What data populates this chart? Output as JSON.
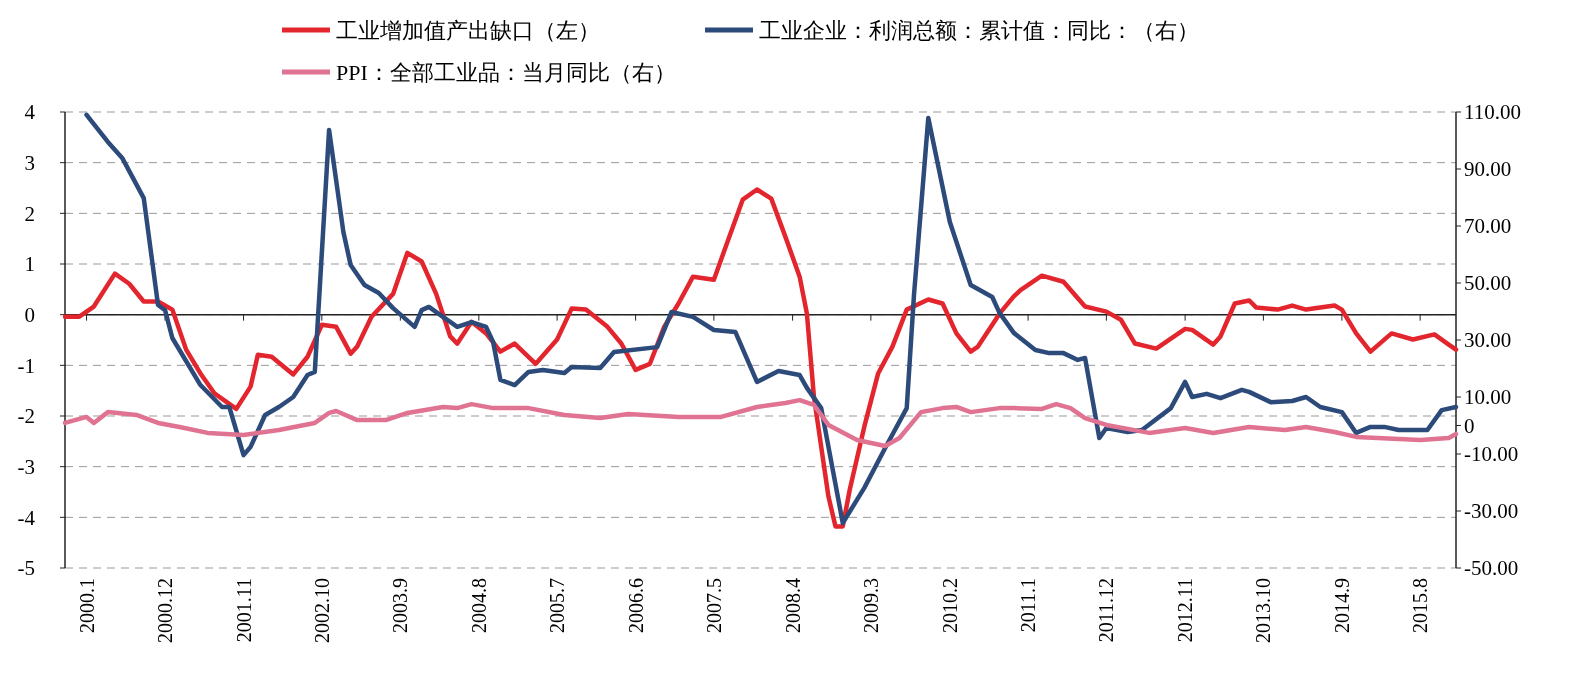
{
  "chart_data": {
    "type": "line",
    "legend": "top",
    "grid": "y",
    "line_style": "solid",
    "marker": "none",
    "xlim": [
      "1999-10",
      "2016-01"
    ],
    "xticks": [
      {
        "value": "2000-01",
        "label": "2000.1"
      },
      {
        "value": "2000-12",
        "label": "2000.12"
      },
      {
        "value": "2001-11",
        "label": "2001.11"
      },
      {
        "value": "2002-10",
        "label": "2002.10"
      },
      {
        "value": "2003-09",
        "label": "2003.9"
      },
      {
        "value": "2004-08",
        "label": "2004.8"
      },
      {
        "value": "2005-07",
        "label": "2005.7"
      },
      {
        "value": "2006-06",
        "label": "2006.6"
      },
      {
        "value": "2007-05",
        "label": "2007.5"
      },
      {
        "value": "2008-04",
        "label": "2008.4"
      },
      {
        "value": "2009-03",
        "label": "2009.3"
      },
      {
        "value": "2010-02",
        "label": "2010.2"
      },
      {
        "value": "2011-01",
        "label": "2011.1"
      },
      {
        "value": "2011-12",
        "label": "2011.12"
      },
      {
        "value": "2012-11",
        "label": "2012.11"
      },
      {
        "value": "2013-10",
        "label": "2013.10"
      },
      {
        "value": "2014-09",
        "label": "2014.9"
      },
      {
        "value": "2015-08",
        "label": "2015.8"
      }
    ],
    "ylim": [
      -5,
      4
    ],
    "yticks": [
      -5,
      -4,
      -3,
      -2,
      -1,
      0,
      1,
      2,
      3,
      4
    ],
    "y2lim": [
      -50,
      110
    ],
    "y2ticks": [
      {
        "value": 110,
        "label": "110.00"
      },
      {
        "value": 90,
        "label": "90.00"
      },
      {
        "value": 70,
        "label": "70.00"
      },
      {
        "value": 50,
        "label": "50.00"
      },
      {
        "value": 30,
        "label": "30.00"
      },
      {
        "value": 10,
        "label": "10.00"
      },
      0,
      {
        "value": -10,
        "label": "-10.00"
      },
      {
        "value": -30,
        "label": "-30.00"
      },
      {
        "value": -50,
        "label": "-50.00"
      }
    ],
    "series": [
      {
        "name": "工业增加值产出缺口（左）",
        "color": "#e3262e",
        "x": [
          "1999-10",
          "1999-12",
          "2000-02",
          "2000-05",
          "2000-07",
          "2000-09",
          "2000-11",
          "2001-01",
          "2001-03",
          "2001-05",
          "2001-07",
          "2001-10",
          "2001-12",
          "2002-01",
          "2002-03",
          "2002-06",
          "2002-08",
          "2002-10",
          "2002-12",
          "2003-02",
          "2003-03",
          "2003-05",
          "2003-08",
          "2003-10",
          "2003-12",
          "2004-02",
          "2004-04",
          "2004-05",
          "2004-07",
          "2004-09",
          "2004-11",
          "2005-01",
          "2005-04",
          "2005-07",
          "2005-09",
          "2005-11",
          "2006-02",
          "2006-04",
          "2006-06",
          "2006-08",
          "2006-10",
          "2006-12",
          "2007-02",
          "2007-05",
          "2007-06",
          "2007-09",
          "2007-11",
          "2008-01",
          "2008-03",
          "2008-05",
          "2008-06",
          "2008-07",
          "2008-09",
          "2008-10",
          "2008-11",
          "2008-12",
          "2009-02",
          "2009-04",
          "2009-06",
          "2009-08",
          "2009-11",
          "2010-01",
          "2010-03",
          "2010-05",
          "2010-06",
          "2010-09",
          "2010-11",
          "2010-12",
          "2011-03",
          "2011-06",
          "2011-09",
          "2011-12",
          "2012-02",
          "2012-04",
          "2012-07",
          "2012-11",
          "2012-12",
          "2013-03",
          "2013-04",
          "2013-06",
          "2013-08",
          "2013-09",
          "2013-12",
          "2014-02",
          "2014-04",
          "2014-08",
          "2014-09",
          "2014-11",
          "2015-01",
          "2015-04",
          "2015-07",
          "2015-10",
          "2015-12",
          "2016-01"
        ],
        "values": [
          -0.04,
          -0.04,
          0.16,
          0.81,
          0.61,
          0.26,
          0.26,
          0.1,
          -0.69,
          -1.16,
          -1.56,
          -1.86,
          -1.42,
          -0.79,
          -0.83,
          -1.18,
          -0.83,
          -0.2,
          -0.24,
          -0.77,
          -0.63,
          -0.04,
          0.41,
          1.22,
          1.05,
          0.41,
          -0.43,
          -0.57,
          -0.14,
          -0.37,
          -0.73,
          -0.57,
          -0.97,
          -0.49,
          0.12,
          0.1,
          -0.24,
          -0.57,
          -1.09,
          -0.97,
          -0.24,
          0.22,
          0.75,
          0.69,
          1.09,
          2.27,
          2.47,
          2.29,
          1.54,
          0.75,
          0.02,
          -1.62,
          -3.59,
          -4.18,
          -4.18,
          -3.45,
          -2.21,
          -1.16,
          -0.63,
          0.1,
          0.3,
          0.22,
          -0.37,
          -0.73,
          -0.63,
          0.02,
          0.36,
          0.49,
          0.77,
          0.65,
          0.16,
          0.06,
          -0.1,
          -0.57,
          -0.67,
          -0.28,
          -0.3,
          -0.59,
          -0.43,
          0.22,
          0.28,
          0.14,
          0.1,
          0.18,
          0.1,
          0.18,
          0.1,
          -0.37,
          -0.73,
          -0.37,
          -0.49,
          -0.39,
          -0.59,
          -0.69
        ]
      },
      {
        "name": "工业企业：利润总额：累计值：同比：（右）",
        "color": "#2c4a7a",
        "axis": "y2",
        "x": [
          "2000-01",
          "2000-04",
          "2000-06",
          "2000-09",
          "2000-11",
          "2000-12",
          "2001-01",
          "2001-05",
          "2001-08",
          "2001-09",
          "2001-11",
          "2001-12",
          "2002-02",
          "2002-04",
          "2002-06",
          "2002-08",
          "2002-09",
          "2002-11",
          "2003-01",
          "2003-02",
          "2003-04",
          "2003-06",
          "2003-08",
          "2003-11",
          "2003-12",
          "2004-01",
          "2004-03",
          "2004-05",
          "2004-07",
          "2004-09",
          "2004-10",
          "2004-11",
          "2005-01",
          "2005-03",
          "2005-05",
          "2005-08",
          "2005-09",
          "2006-01",
          "2006-03",
          "2006-09",
          "2006-11",
          "2007-02",
          "2007-05",
          "2007-08",
          "2007-11",
          "2008-02",
          "2008-05",
          "2008-06",
          "2008-08",
          "2008-11",
          "2009-02",
          "2009-05",
          "2009-08",
          "2009-09",
          "2009-11",
          "2010-02",
          "2010-05",
          "2010-08",
          "2010-09",
          "2010-11",
          "2011-02",
          "2011-04",
          "2011-06",
          "2011-08",
          "2011-09",
          "2011-11",
          "2011-12",
          "2012-03",
          "2012-05",
          "2012-09",
          "2012-11",
          "2012-12",
          "2013-02",
          "2013-04",
          "2013-07",
          "2013-08",
          "2013-11",
          "2014-02",
          "2014-04",
          "2014-06",
          "2014-09",
          "2014-11",
          "2015-01",
          "2015-03",
          "2015-05",
          "2015-09",
          "2015-11",
          "2016-01"
        ],
        "values": [
          109,
          99.5,
          93.9,
          79.8,
          42.3,
          40.5,
          30.7,
          14.2,
          6.5,
          6.5,
          -10.4,
          -7.5,
          3.7,
          6.5,
          10,
          17.7,
          18.8,
          103.7,
          67.9,
          56.3,
          49.3,
          46.5,
          41.2,
          34.6,
          40.5,
          41.6,
          38.1,
          34.6,
          36.3,
          34.6,
          29.3,
          16,
          14.2,
          18.8,
          19.5,
          18.4,
          20.5,
          20.2,
          25.8,
          27.5,
          39.8,
          38.1,
          33.5,
          32.8,
          15.3,
          19.1,
          17.7,
          13.2,
          6.1,
          -34.2,
          -21.9,
          -7.9,
          6.1,
          45.8,
          107.9,
          71.4,
          49.3,
          45.1,
          39.5,
          32.5,
          26.5,
          25.4,
          25.4,
          23,
          23.7,
          -4.4,
          -0.9,
          -2.3,
          -1.6,
          6.1,
          15.3,
          10,
          11.1,
          9.6,
          12.5,
          11.8,
          8.2,
          8.6,
          10,
          6.5,
          4.7,
          -2.6,
          -0.5,
          -0.5,
          -1.6,
          -1.6,
          5.4,
          6.5
        ]
      },
      {
        "name": "PPI：全部工业品：当月同比（右）",
        "color": "#e07391",
        "axis": "y2",
        "x": [
          "1999-10",
          "2000-01",
          "2000-02",
          "2000-04",
          "2000-08",
          "2000-11",
          "2001-02",
          "2001-06",
          "2001-11",
          "2002-04",
          "2002-09",
          "2002-11",
          "2002-12",
          "2003-03",
          "2003-07",
          "2003-10",
          "2004-03",
          "2004-05",
          "2004-07",
          "2004-10",
          "2005-03",
          "2005-08",
          "2006-01",
          "2006-05",
          "2006-12",
          "2007-06",
          "2007-11",
          "2008-03",
          "2008-05",
          "2008-07",
          "2008-09",
          "2009-01",
          "2009-05",
          "2009-07",
          "2009-10",
          "2010-01",
          "2010-03",
          "2010-05",
          "2010-09",
          "2010-11",
          "2011-03",
          "2011-05",
          "2011-07",
          "2011-09",
          "2011-12",
          "2012-06",
          "2012-11",
          "2013-03",
          "2013-08",
          "2014-01",
          "2014-04",
          "2014-08",
          "2014-11",
          "2015-08",
          "2015-12",
          "2016-01"
        ],
        "values": [
          0.9,
          3,
          0.9,
          4.7,
          3.7,
          0.9,
          -0.5,
          -2.6,
          -3.3,
          -1.6,
          0.9,
          4.4,
          5.1,
          1.9,
          1.9,
          4.4,
          6.5,
          6.1,
          7.5,
          6.1,
          6.1,
          3.7,
          2.6,
          4,
          3,
          3,
          6.5,
          7.9,
          8.9,
          7.2,
          0.2,
          -5.1,
          -7.2,
          -4.4,
          4.7,
          6.1,
          6.5,
          4.7,
          6.1,
          6.1,
          5.8,
          7.5,
          6.1,
          2.6,
          0.2,
          -2.6,
          -0.9,
          -2.6,
          -0.5,
          -1.6,
          -0.5,
          -2.3,
          -4,
          -5.1,
          -4.4,
          -3
        ]
      }
    ]
  }
}
